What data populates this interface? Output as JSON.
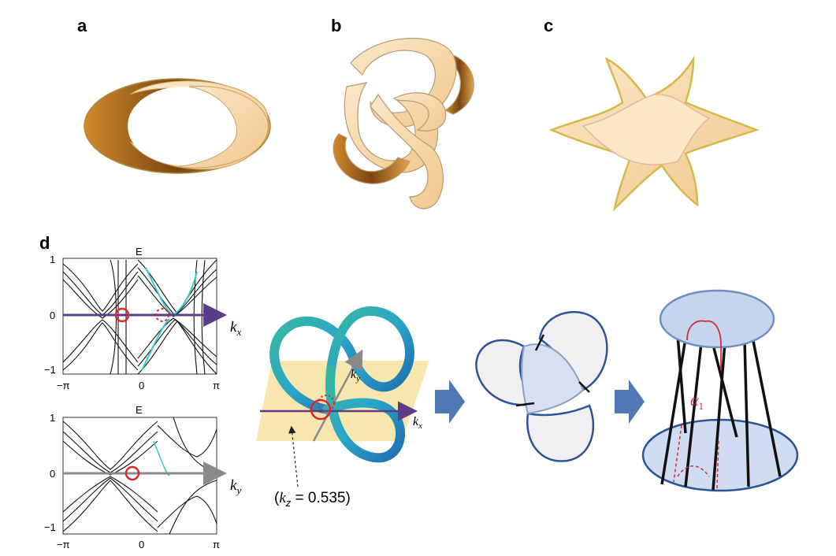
{
  "panels": {
    "a": "a",
    "b": "b",
    "c": "c",
    "d": "d"
  },
  "band_top": {
    "title": "E",
    "yticks": [
      "1",
      "0",
      "−1"
    ],
    "xticks": [
      "−π",
      "0",
      "π"
    ],
    "axis_symbol": "k",
    "axis_sub": "x"
  },
  "band_bottom": {
    "title": "E",
    "yticks": [
      "1",
      "0",
      "−1"
    ],
    "xticks": [
      "−π",
      "0",
      "π"
    ],
    "axis_symbol": "k",
    "axis_sub": "y"
  },
  "knot": {
    "ky_symbol": "k",
    "ky_sub": "y",
    "kx_symbol": "k",
    "kx_sub": "x",
    "kz_prefix": "(",
    "kz_symbol": "k",
    "kz_sub": "z",
    "kz_value": " = 0.535)"
  },
  "cylinder": {
    "alpha_symbol": "α",
    "alpha_sub": "1"
  },
  "colors": {
    "band_line": "#111111",
    "band_highlight": "#35c8c8",
    "axis_purple": "#5a3d86",
    "axis_gray": "#8a8a8a",
    "node_red": "#d8262e",
    "knot_teal": "#2aa6b8",
    "knot_plane": "#f6e3a0",
    "arrow_blue": "#4f78b5",
    "loop_blue": "#2e5394",
    "loop_fill": "#f0f0f2",
    "ribbon_tan": "#f6d8a8",
    "ribbon_brown": "#b8741f"
  }
}
